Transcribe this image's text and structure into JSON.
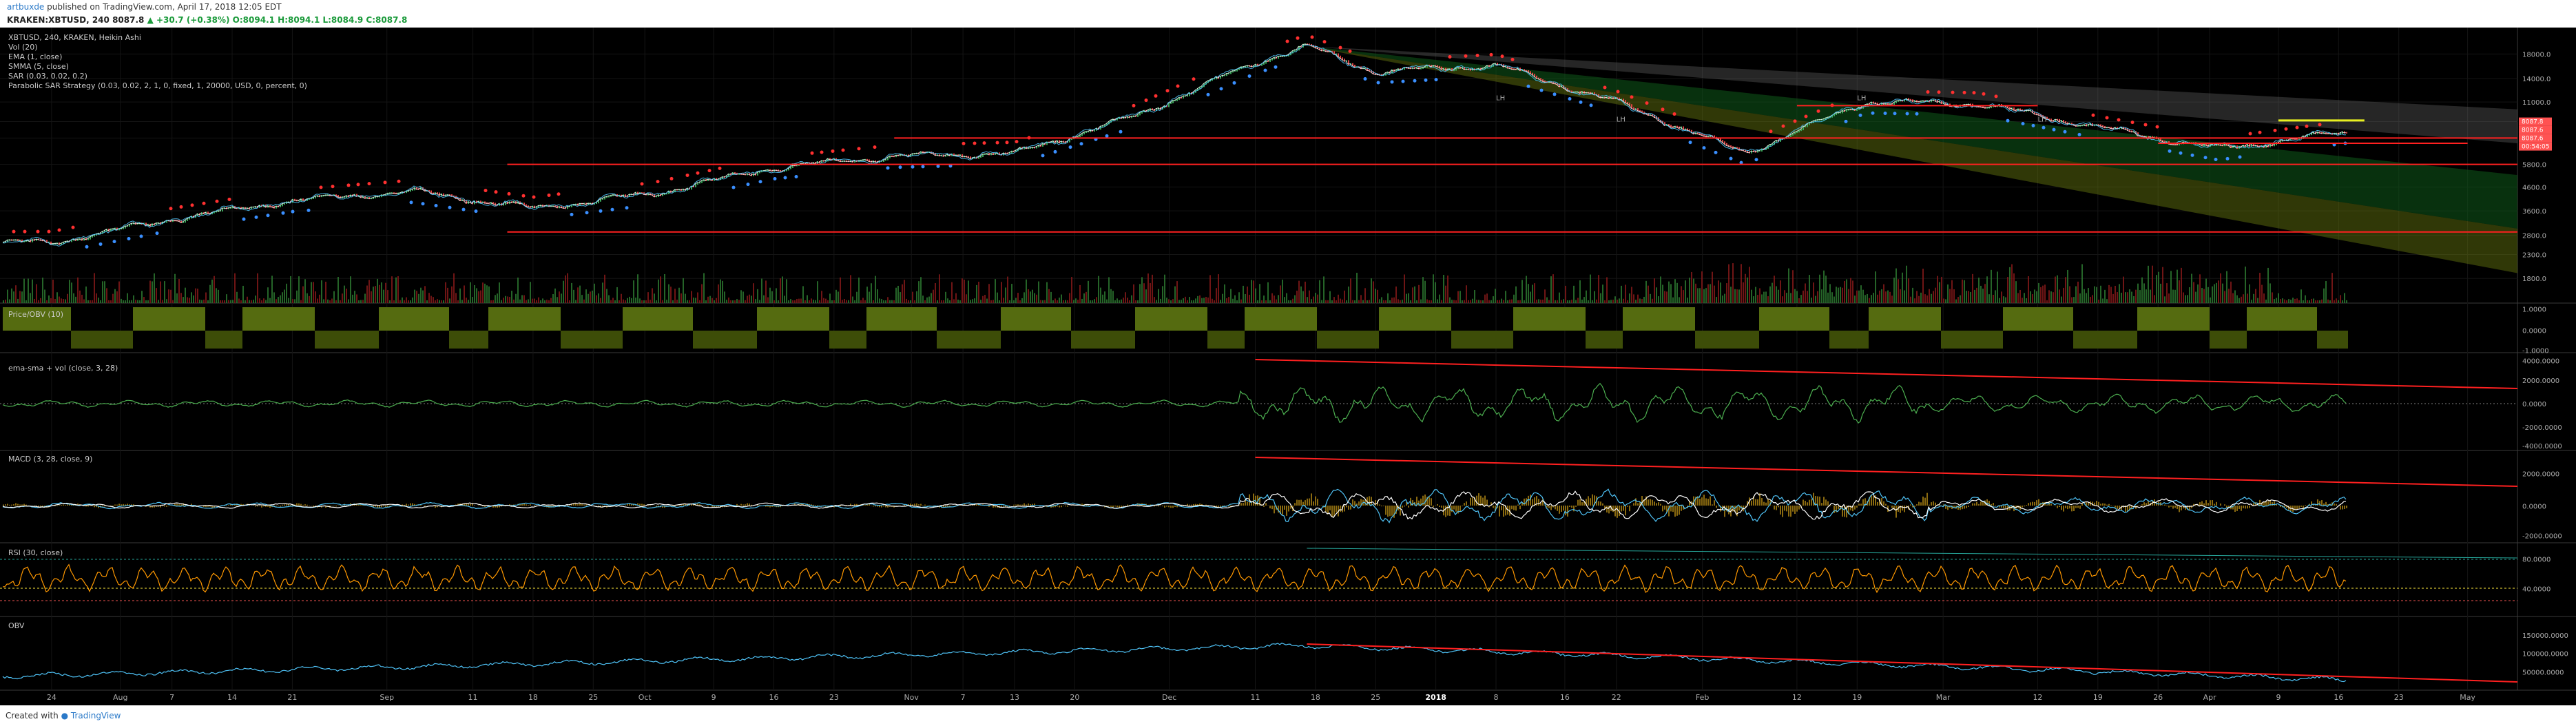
{
  "header": {
    "author": "artbuxde",
    "published": "published on TradingView.com, April 17, 2018 12:05 EDT",
    "symbol": "KRAKEN:XBTUSD, 240",
    "last": "8087.8",
    "change": "▲ +30.7 (+0.38%)",
    "ohlc": "O:8094.1  H:8094.1  L:8084.9  C:8087.8"
  },
  "legend": {
    "title": "XBTUSD, 240, KRAKEN, Heikin Ashi",
    "items": [
      "Vol (20)",
      "EMA (1, close)",
      "SMMA (5, close)",
      "SAR (0.03, 0.02, 0.2)",
      "Parabolic SAR Strategy (0.03, 0.02, 2, 1, 0, fixed, 1, 20000, USD, 0, percent, 0)"
    ]
  },
  "colors": {
    "background": "#000000",
    "up": "#26a69a",
    "down": "#ef5350",
    "trendline": "#ff2020",
    "rsi": "#ff9800",
    "macd": "#4fc3f7",
    "obv": "#4fc3f7",
    "price_obv_fill": "#556b10"
  },
  "chart_data": [
    {
      "type": "line",
      "title": "XBTUSD, 240, KRAKEN, Heikin Ashi",
      "y_scale": "log",
      "ylim": [
        1500,
        22000
      ],
      "y_ticks": [
        "18000.0",
        "14000.0",
        "11000.0",
        "9000.0",
        "7600.0",
        "5800.0",
        "4600.0",
        "3600.0",
        "2800.0",
        "2300.0",
        "1800.0"
      ],
      "price_labels": [
        "8087.8",
        "8087.6",
        "8087.6",
        "00:54:05"
      ],
      "x_ticks": [
        "24",
        "Aug",
        "7",
        "14",
        "21",
        "Sep",
        "11",
        "18",
        "25",
        "Oct",
        "9",
        "16",
        "23",
        "Nov",
        "7",
        "13",
        "20",
        "Dec",
        "11",
        "18",
        "25",
        "2018",
        "8",
        "16",
        "22",
        "Feb",
        "12",
        "19",
        "Mar",
        "12",
        "19",
        "26",
        "Apr",
        "9",
        "16",
        "23",
        "May"
      ],
      "x": [
        "2017-07-24",
        "2017-08-07",
        "2017-08-21",
        "2017-09-04",
        "2017-09-18",
        "2017-10-02",
        "2017-10-16",
        "2017-10-30",
        "2017-11-13",
        "2017-11-27",
        "2017-12-11",
        "2017-12-17",
        "2017-12-25",
        "2018-01-08",
        "2018-01-22",
        "2018-02-06",
        "2018-02-20",
        "2018-03-05",
        "2018-03-19",
        "2018-04-02",
        "2018-04-17"
      ],
      "series": [
        {
          "values": [
            2600,
            3300,
            4000,
            4400,
            3700,
            4300,
            5600,
            6300,
            6500,
            9500,
            16500,
            19500,
            15000,
            16000,
            11000,
            6500,
            11000,
            10800,
            8500,
            6800,
            8087.8
          ]
        }
      ],
      "horizontal_levels": [
        7600,
        5800,
        2900,
        10600,
        7200
      ],
      "annotations": [
        "LH",
        "LH",
        "LH",
        "LH"
      ]
    },
    {
      "type": "area",
      "title": "Price/OBV (10)",
      "y_ticks": [
        "1.0000",
        "0.0000",
        "-1.0000"
      ]
    },
    {
      "type": "line",
      "title": "ema-sma + vol (close, 3, 28)",
      "y_ticks": [
        "4000.0000",
        "2000.0000",
        "0.0000",
        "-2000.0000",
        "-4000.0000"
      ]
    },
    {
      "type": "line",
      "title": "MACD (3, 28, close, 9)",
      "y_ticks": [
        "2000.0000",
        "0.0000",
        "-2000.0000"
      ]
    },
    {
      "type": "line",
      "title": "RSI (30, close)",
      "y_ticks": [
        "80.0000",
        "40.0000"
      ]
    },
    {
      "type": "line",
      "title": "OBV",
      "y_ticks": [
        "150000.0000",
        "100000.0000",
        "50000.0000"
      ]
    }
  ],
  "footer": {
    "created_with": "Created with",
    "brand": "TradingView"
  }
}
